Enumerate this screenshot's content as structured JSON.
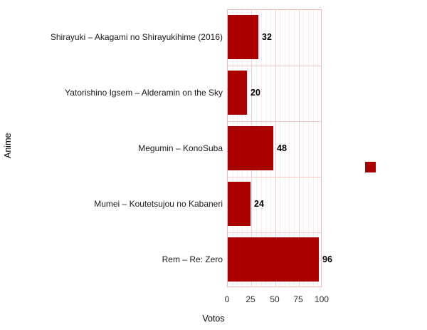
{
  "chart_data": {
    "type": "bar",
    "orientation": "horizontal",
    "categories": [
      "Shirayuki – Akagami no Shirayukihime (2016)",
      "Yatorishino Igsem – Alderamin on the Sky",
      "Megumin – KonoSuba",
      "Mumei – Koutetsujou no Kabaneri",
      "Rem – Re: Zero"
    ],
    "values": [
      32,
      20,
      48,
      24,
      96
    ],
    "value_labels": [
      "32",
      "20",
      "48",
      "24",
      "96"
    ],
    "title": "",
    "xlabel": "Votos",
    "ylabel": "Anime",
    "xlim": [
      0,
      100
    ],
    "x_ticks": [
      "0",
      "25",
      "50",
      "75",
      "100"
    ],
    "x_tick_values": [
      0,
      25,
      50,
      75,
      100
    ],
    "minor_tick_step": 5,
    "grid": "on",
    "legend_position": "right",
    "colors": {
      "bar_fill": "#aa0000",
      "grid_major": "#f6caca",
      "grid_minor": "#fbecec",
      "panel_border": "#efb9b9",
      "panel_background": "#ffffff",
      "label_text": "#1a1a1a",
      "tick_text": "#2b2b2b"
    },
    "legend": {
      "swatch_color": "#aa0000",
      "label": ""
    }
  }
}
